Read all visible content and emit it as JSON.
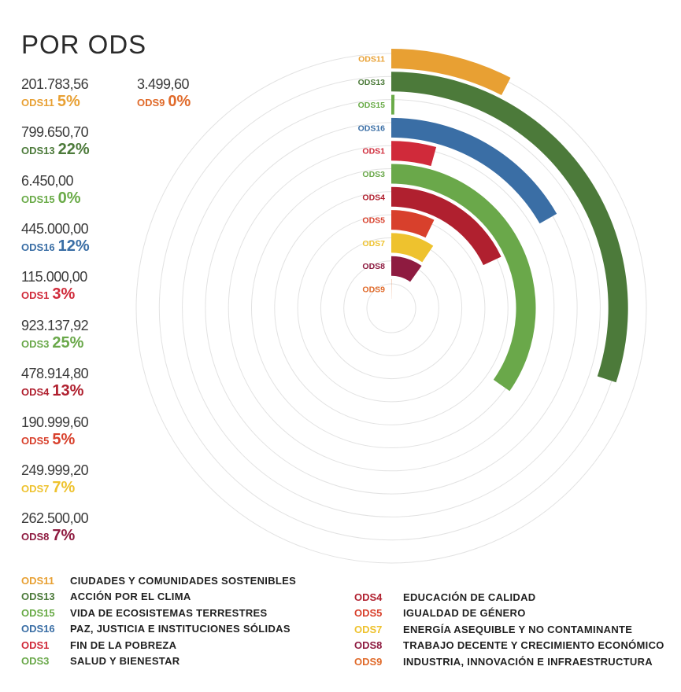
{
  "title": "POR ODS",
  "chart_data": {
    "type": "radial-bar",
    "unit_note": "",
    "max_percent": 25,
    "series": [
      {
        "code": "ODS11",
        "amount": "201.783,56",
        "value": 201783.56,
        "percent": "5%",
        "color": "#e8a033"
      },
      {
        "code": "ODS13",
        "amount": "799.650,70",
        "value": 799650.7,
        "percent": "22%",
        "color": "#4c7a3a"
      },
      {
        "code": "ODS15",
        "amount": "6.450,00",
        "value": 6450.0,
        "percent": "0%",
        "color": "#6aab48"
      },
      {
        "code": "ODS16",
        "amount": "445.000,00",
        "value": 445000.0,
        "percent": "12%",
        "color": "#3a6ea5"
      },
      {
        "code": "ODS1",
        "amount": "115.000,00",
        "value": 115000.0,
        "percent": "3%",
        "color": "#d02a3a"
      },
      {
        "code": "ODS3",
        "amount": "923.137,92",
        "value": 923137.92,
        "percent": "25%",
        "color": "#6aa84a"
      },
      {
        "code": "ODS4",
        "amount": "478.914,80",
        "value": 478914.8,
        "percent": "13%",
        "color": "#b0202f"
      },
      {
        "code": "ODS5",
        "amount": "190.999,60",
        "value": 190999.6,
        "percent": "5%",
        "color": "#d8402c"
      },
      {
        "code": "ODS7",
        "amount": "249.999,20",
        "value": 249999.2,
        "percent": "7%",
        "color": "#eec22e"
      },
      {
        "code": "ODS8",
        "amount": "262.500,00",
        "value": 262500.0,
        "percent": "7%",
        "color": "#8e1b40"
      },
      {
        "code": "ODS9",
        "amount": "3.499,60",
        "value": 3499.6,
        "percent": "0%",
        "color": "#e06a2a"
      }
    ]
  },
  "legend": {
    "left": [
      {
        "code": "ODS11",
        "label": "CIUDADES Y COMUNIDADES SOSTENIBLES",
        "color": "#e8a033"
      },
      {
        "code": "ODS13",
        "label": "ACCIÓN POR EL CLIMA",
        "color": "#4c7a3a"
      },
      {
        "code": "ODS15",
        "label": "VIDA DE ECOSISTEMAS TERRESTRES",
        "color": "#6aab48"
      },
      {
        "code": "ODS16",
        "label": "PAZ, JUSTICIA E INSTITUCIONES SÓLIDAS",
        "color": "#3a6ea5"
      },
      {
        "code": "ODS1",
        "label": "FIN DE LA POBREZA",
        "color": "#d02a3a"
      },
      {
        "code": "ODS3",
        "label": "SALUD Y BIENESTAR",
        "color": "#6aa84a"
      }
    ],
    "right": [
      {
        "code": "ODS4",
        "label": "EDUCACIÓN DE CALIDAD",
        "color": "#b0202f"
      },
      {
        "code": "ODS5",
        "label": "IGUALDAD DE GÉNERO",
        "color": "#d8402c"
      },
      {
        "code": "ODS7",
        "label": "ENERGÍA ASEQUIBLE Y NO CONTAMINANTE",
        "color": "#eec22e"
      },
      {
        "code": "ODS8",
        "label": "TRABAJO DECENTE Y CRECIMIENTO ECONÓMICO",
        "color": "#8e1b40"
      },
      {
        "code": "ODS9",
        "label": "INDUSTRIA, INNOVACIÓN E INFRAESTRUCTURA",
        "color": "#e06a2a"
      }
    ]
  }
}
